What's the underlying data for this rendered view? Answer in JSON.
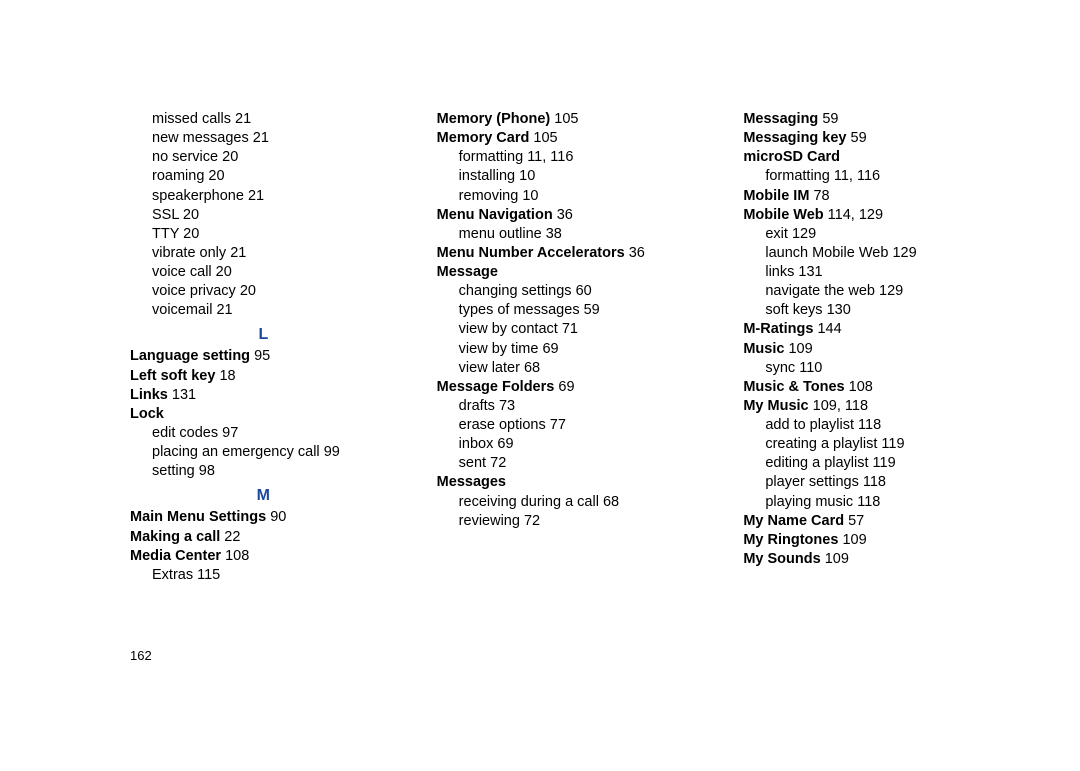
{
  "pageNumber": "162",
  "letterHeadings": {
    "L": "L",
    "M": "M"
  },
  "col1": {
    "continued": [
      {
        "label": "missed calls",
        "page": "21"
      },
      {
        "label": "new messages",
        "page": "21"
      },
      {
        "label": "no service",
        "page": "20"
      },
      {
        "label": "roaming",
        "page": "20"
      },
      {
        "label": "speakerphone",
        "page": "21"
      },
      {
        "label": "SSL",
        "page": "20"
      },
      {
        "label": "TTY",
        "page": "20"
      },
      {
        "label": "vibrate only",
        "page": "21"
      },
      {
        "label": "voice call",
        "page": "20"
      },
      {
        "label": "voice privacy",
        "page": "20"
      },
      {
        "label": "voicemail",
        "page": "21"
      }
    ],
    "languageSetting": {
      "label": "Language setting",
      "page": "95"
    },
    "leftSoftKey": {
      "label": "Left soft key",
      "page": "18"
    },
    "links": {
      "label": "Links",
      "page": "131"
    },
    "lock": {
      "label": "Lock",
      "subs": [
        {
          "label": "edit codes",
          "page": "97"
        },
        {
          "label": "placing an emergency call",
          "page": "99"
        },
        {
          "label": "setting",
          "page": "98"
        }
      ]
    },
    "mainMenuSettings": {
      "label": "Main Menu Settings",
      "page": "90"
    },
    "makingACall": {
      "label": "Making a call",
      "page": "22"
    },
    "mediaCenter": {
      "label": "Media Center",
      "page": "108",
      "subs": [
        {
          "label": "Extras",
          "page": "115"
        }
      ]
    }
  },
  "col2": {
    "memoryPhone": {
      "label": "Memory (Phone)",
      "page": "105"
    },
    "memoryCard": {
      "label": "Memory Card",
      "page": "105",
      "subs": [
        {
          "label": "formatting",
          "page": "11, 116"
        },
        {
          "label": "installing",
          "page": "10"
        },
        {
          "label": "removing",
          "page": "10"
        }
      ]
    },
    "menuNavigation": {
      "label": "Menu Navigation",
      "page": "36",
      "subs": [
        {
          "label": "menu outline",
          "page": "38"
        }
      ]
    },
    "menuNumberAccel": {
      "label": "Menu Number Accelerators",
      "page": "36"
    },
    "message": {
      "label": "Message",
      "subs": [
        {
          "label": "changing settings",
          "page": "60"
        },
        {
          "label": "types of messages",
          "page": "59"
        },
        {
          "label": "view by contact",
          "page": "71"
        },
        {
          "label": "view by time",
          "page": "69"
        },
        {
          "label": "view later",
          "page": "68"
        }
      ]
    },
    "messageFolders": {
      "label": "Message Folders",
      "page": "69",
      "subs": [
        {
          "label": "drafts",
          "page": "73"
        },
        {
          "label": "erase options",
          "page": "77"
        },
        {
          "label": "inbox",
          "page": "69"
        },
        {
          "label": "sent",
          "page": "72"
        }
      ]
    },
    "messages": {
      "label": "Messages",
      "subs": [
        {
          "label": "receiving during a call",
          "page": "68"
        },
        {
          "label": "reviewing",
          "page": "72"
        }
      ]
    }
  },
  "col3": {
    "messaging": {
      "label": "Messaging",
      "page": "59"
    },
    "messagingKey": {
      "label": "Messaging key",
      "page": "59"
    },
    "microSD": {
      "label": "microSD Card",
      "subs": [
        {
          "label": "formatting",
          "page": "11, 116"
        }
      ]
    },
    "mobileIM": {
      "label": "Mobile IM",
      "page": "78"
    },
    "mobileWeb": {
      "label": "Mobile Web",
      "page": "114, 129",
      "subs": [
        {
          "label": "exit",
          "page": "129"
        },
        {
          "label": "launch Mobile Web",
          "page": "129"
        },
        {
          "label": "links",
          "page": "131"
        },
        {
          "label": "navigate the web",
          "page": "129"
        },
        {
          "label": "soft keys",
          "page": "130"
        }
      ]
    },
    "mRatings": {
      "label": "M-Ratings",
      "page": "144"
    },
    "music": {
      "label": "Music",
      "page": "109",
      "subs": [
        {
          "label": "sync",
          "page": "110"
        }
      ]
    },
    "musicTones": {
      "label": "Music & Tones",
      "page": "108"
    },
    "myMusic": {
      "label": "My Music",
      "page": "109, 118",
      "subs": [
        {
          "label": "add to playlist",
          "page": "118"
        },
        {
          "label": "creating a playlist",
          "page": "119"
        },
        {
          "label": "editing a playlist",
          "page": "119"
        },
        {
          "label": "player settings",
          "page": "118"
        },
        {
          "label": "playing music",
          "page": "118"
        }
      ]
    },
    "myNameCard": {
      "label": "My Name Card",
      "page": "57"
    },
    "myRingtones": {
      "label": "My Ringtones",
      "page": "109"
    },
    "mySounds": {
      "label": "My Sounds",
      "page": "109"
    }
  }
}
